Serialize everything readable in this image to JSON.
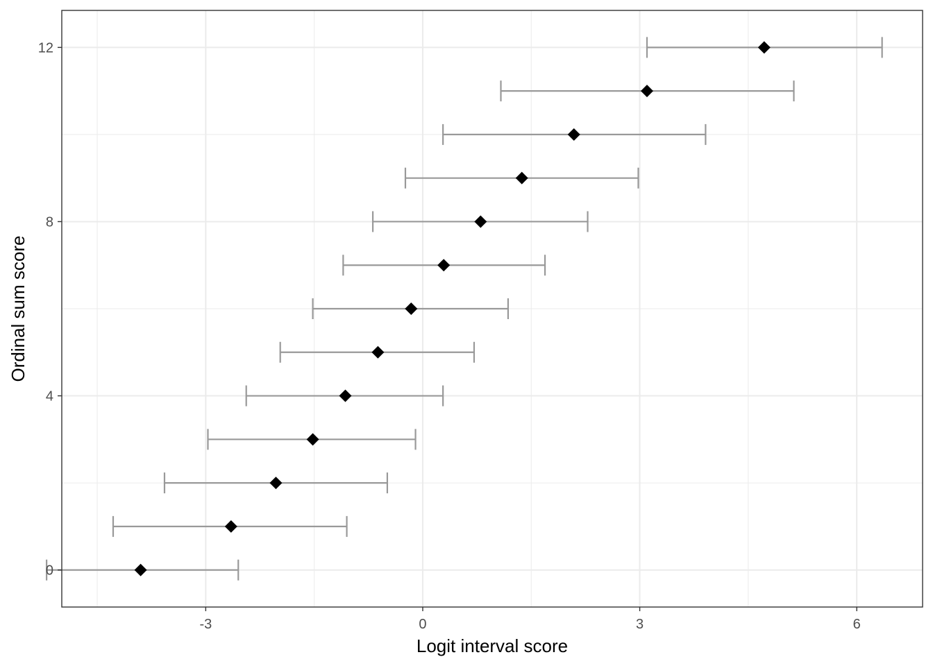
{
  "chart_data": {
    "type": "scatter",
    "xlabel": "Logit interval score",
    "ylabel": "Ordinal sum score",
    "xlim": [
      -4.99,
      6.91
    ],
    "ylim": [
      -0.85,
      12.85
    ],
    "xticks": [
      -3,
      0,
      3,
      6
    ],
    "xtick_labels": [
      "-3",
      "0",
      "3",
      "6"
    ],
    "yticks": [
      0,
      4,
      8,
      12
    ],
    "ytick_labels": [
      "0",
      "4",
      "8",
      "12"
    ],
    "x_minor_grid": [
      -4.5,
      -1.5,
      1.5,
      4.5
    ],
    "y_minor_grid": [
      2,
      6,
      10
    ],
    "grid": true,
    "legend": "none",
    "colors": {
      "point": "#000000",
      "errorbar": "#999999",
      "grid": "#ebebeb",
      "panel_border": "#333333"
    },
    "points": [
      {
        "y": 0,
        "x": -3.9,
        "xmin": -5.2,
        "xmax": -2.55
      },
      {
        "y": 1,
        "x": -2.65,
        "xmin": -4.28,
        "xmax": -1.05
      },
      {
        "y": 2,
        "x": -2.03,
        "xmin": -3.57,
        "xmax": -0.49
      },
      {
        "y": 3,
        "x": -1.52,
        "xmin": -2.97,
        "xmax": -0.1
      },
      {
        "y": 4,
        "x": -1.07,
        "xmin": -2.44,
        "xmax": 0.28
      },
      {
        "y": 5,
        "x": -0.62,
        "xmin": -1.97,
        "xmax": 0.71
      },
      {
        "y": 6,
        "x": -0.16,
        "xmin": -1.52,
        "xmax": 1.18
      },
      {
        "y": 7,
        "x": 0.29,
        "xmin": -1.1,
        "xmax": 1.69
      },
      {
        "y": 8,
        "x": 0.8,
        "xmin": -0.69,
        "xmax": 2.28
      },
      {
        "y": 9,
        "x": 1.37,
        "xmin": -0.24,
        "xmax": 2.98
      },
      {
        "y": 10,
        "x": 2.09,
        "xmin": 0.28,
        "xmax": 3.91
      },
      {
        "y": 11,
        "x": 3.1,
        "xmin": 1.08,
        "xmax": 5.13
      },
      {
        "y": 12,
        "x": 4.72,
        "xmin": 3.1,
        "xmax": 6.35
      }
    ]
  }
}
